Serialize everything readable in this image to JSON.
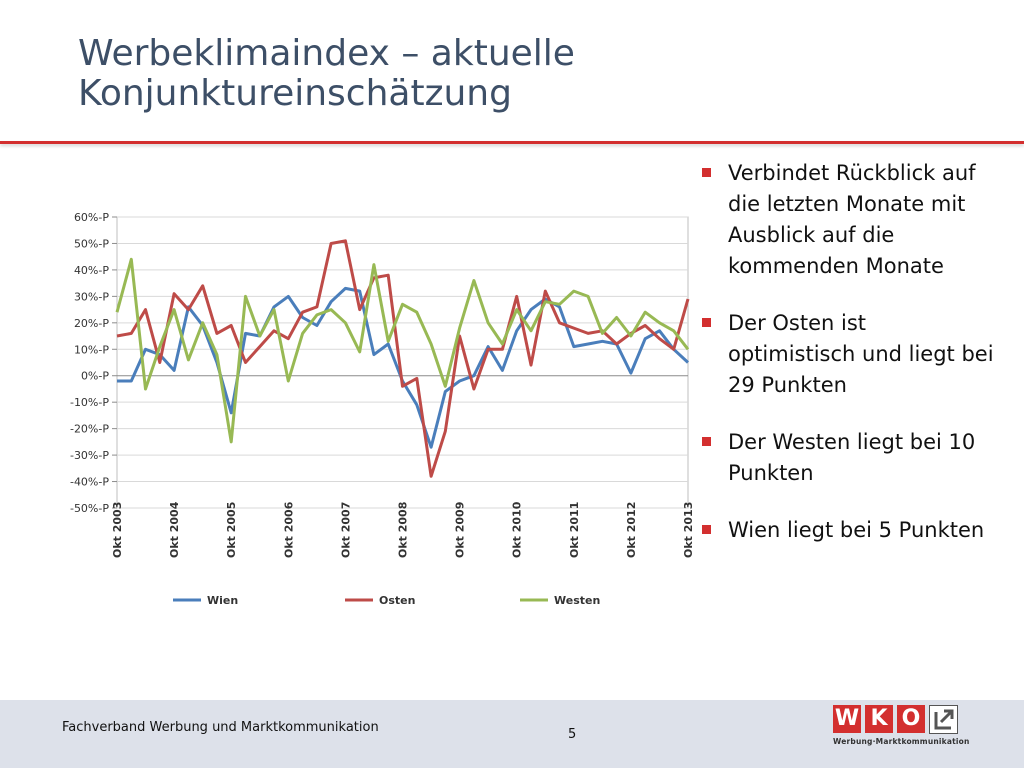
{
  "slide": {
    "title_line1": "Werbeklimaindex – aktuelle",
    "title_line2": "Konjunktureinschätzung"
  },
  "bullets": [
    "Verbindet Rückblick auf die letzten Monate mit Ausblick auf die kommenden Monate",
    "Der Osten ist optimistisch und liegt bei 29 Punkten",
    "Der Westen liegt bei 10 Punkten",
    "Wien liegt bei 5 Punkten"
  ],
  "footer": {
    "text": "Fachverband Werbung und Marktkommunikation",
    "page": "5"
  },
  "logo": {
    "letters": [
      "W",
      "K",
      "O"
    ],
    "tagline": "Werbung·Marktkommunikation",
    "icon": "arrow-up-right-icon"
  },
  "colors": {
    "accent": "#d32f2f",
    "title": "#3d4f67",
    "footer_band": "#dde1ea",
    "wien": "#4a7ebb",
    "osten": "#be4b48",
    "westen": "#98b954"
  },
  "chart_data": {
    "type": "line",
    "y_tick_labels": [
      "60%-P",
      "50%-P",
      "40%-P",
      "30%-P",
      "20%-P",
      "10%-P",
      "0%-P",
      "-10%-P",
      "-20%-P",
      "-30%-P",
      "-40%-P",
      "-50%-P"
    ],
    "ylim": [
      -50,
      60
    ],
    "y_unit": "%-P",
    "x_tick_labels": [
      "Okt 2003",
      "Okt 2004",
      "Okt 2005",
      "Okt 2006",
      "Okt 2007",
      "Okt 2008",
      "Okt 2009",
      "Okt 2010",
      "Okt 2011",
      "Okt 2012",
      "Okt 2013"
    ],
    "x_points_per_year": 4,
    "grid": "horizontal",
    "legend_position": "bottom",
    "series": [
      {
        "name": "Wien",
        "values": [
          -2,
          -2,
          10,
          8,
          2,
          26,
          19,
          5,
          -14,
          16,
          15,
          26,
          30,
          22,
          19,
          28,
          33,
          32,
          8,
          12,
          -2,
          -11,
          -27,
          -6,
          -2,
          0,
          11,
          2,
          17,
          25,
          29,
          26,
          11,
          12,
          13,
          12,
          1,
          14,
          17,
          10,
          5
        ]
      },
      {
        "name": "Osten",
        "values": [
          15,
          16,
          25,
          5,
          31,
          25,
          34,
          16,
          19,
          5,
          11,
          17,
          14,
          24,
          26,
          50,
          51,
          25,
          37,
          38,
          -4,
          -1,
          -38,
          -21,
          15,
          -5,
          10,
          10,
          30,
          4,
          32,
          20,
          18,
          16,
          17,
          12,
          16,
          19,
          14,
          10,
          29
        ]
      },
      {
        "name": "Westen",
        "values": [
          24,
          44,
          -5,
          11,
          25,
          6,
          20,
          8,
          -25,
          30,
          15,
          25,
          -2,
          16,
          23,
          25,
          20,
          9,
          42,
          13,
          27,
          24,
          12,
          -4,
          18,
          36,
          20,
          12,
          25,
          17,
          28,
          27,
          32,
          30,
          16,
          22,
          15,
          24,
          20,
          17,
          10
        ]
      }
    ]
  }
}
